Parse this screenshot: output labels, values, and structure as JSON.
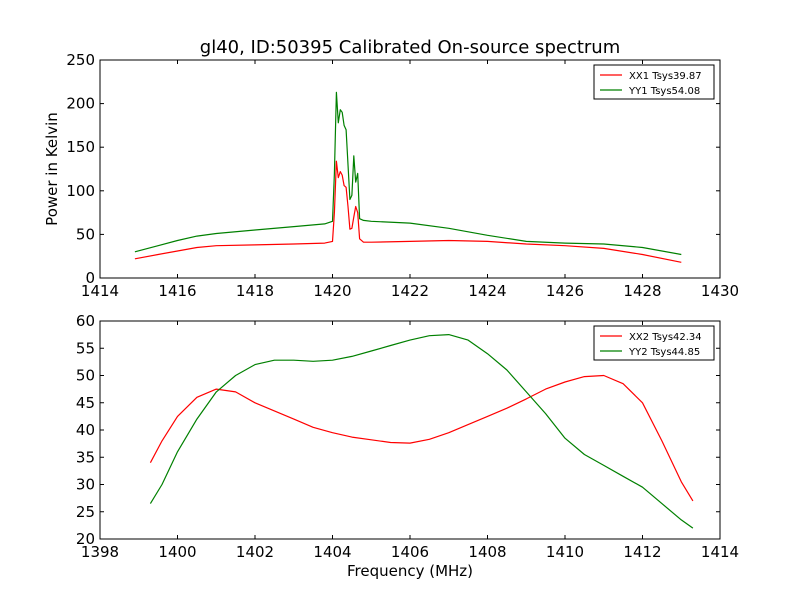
{
  "figure": {
    "title": "gl40, ID:50395 Calibrated On-source spectrum"
  },
  "colors": {
    "XX": "#ff0000",
    "YY": "#008000",
    "axis": "#000000"
  },
  "chart_data": [
    {
      "type": "line",
      "title": "gl40, ID:50395 Calibrated On-source spectrum",
      "xlabel": "",
      "ylabel": "Power in Kelvin",
      "xlim": [
        1414,
        1430
      ],
      "ylim": [
        0,
        250
      ],
      "xticks": [
        "1414",
        "1416",
        "1418",
        "1420",
        "1422",
        "1424",
        "1426",
        "1428",
        "1430"
      ],
      "yticks": [
        "0",
        "50",
        "100",
        "150",
        "200",
        "250"
      ],
      "legend_position": "top-right",
      "grid": false,
      "series": [
        {
          "name": "XX1 Tsys39.87",
          "color": "#ff0000",
          "points": [
            [
              1414.9,
              22
            ],
            [
              1415.5,
              27
            ],
            [
              1416,
              31
            ],
            [
              1416.5,
              35
            ],
            [
              1417,
              37
            ],
            [
              1418,
              38
            ],
            [
              1419,
              39
            ],
            [
              1419.8,
              40
            ],
            [
              1420.0,
              42
            ],
            [
              1420.05,
              75
            ],
            [
              1420.1,
              134
            ],
            [
              1420.15,
              115
            ],
            [
              1420.2,
              122
            ],
            [
              1420.25,
              118
            ],
            [
              1420.3,
              106
            ],
            [
              1420.35,
              104
            ],
            [
              1420.4,
              82
            ],
            [
              1420.45,
              56
            ],
            [
              1420.5,
              57
            ],
            [
              1420.55,
              70
            ],
            [
              1420.6,
              82
            ],
            [
              1420.65,
              75
            ],
            [
              1420.7,
              45
            ],
            [
              1420.8,
              41
            ],
            [
              1421,
              41
            ],
            [
              1422,
              42
            ],
            [
              1423,
              43
            ],
            [
              1424,
              42
            ],
            [
              1425,
              39
            ],
            [
              1426,
              37
            ],
            [
              1427,
              34
            ],
            [
              1428,
              27
            ],
            [
              1429,
              18
            ]
          ]
        },
        {
          "name": "YY1 Tsys54.08",
          "color": "#008000",
          "points": [
            [
              1414.9,
              30
            ],
            [
              1415.5,
              37
            ],
            [
              1416,
              43
            ],
            [
              1416.5,
              48
            ],
            [
              1417,
              51
            ],
            [
              1418,
              55
            ],
            [
              1419,
              59
            ],
            [
              1419.8,
              62
            ],
            [
              1420.0,
              65
            ],
            [
              1420.05,
              120
            ],
            [
              1420.1,
              213
            ],
            [
              1420.15,
              178
            ],
            [
              1420.2,
              193
            ],
            [
              1420.25,
              190
            ],
            [
              1420.3,
              175
            ],
            [
              1420.35,
              170
            ],
            [
              1420.4,
              130
            ],
            [
              1420.45,
              90
            ],
            [
              1420.5,
              95
            ],
            [
              1420.55,
              140
            ],
            [
              1420.6,
              110
            ],
            [
              1420.65,
              120
            ],
            [
              1420.7,
              68
            ],
            [
              1420.8,
              66
            ],
            [
              1421,
              65
            ],
            [
              1422,
              63
            ],
            [
              1423,
              57
            ],
            [
              1424,
              49
            ],
            [
              1425,
              42
            ],
            [
              1426,
              40
            ],
            [
              1427,
              39
            ],
            [
              1428,
              35
            ],
            [
              1429,
              27
            ]
          ]
        }
      ]
    },
    {
      "type": "line",
      "title": "",
      "xlabel": "Frequency (MHz)",
      "ylabel": "",
      "xlim": [
        1398,
        1414
      ],
      "ylim": [
        20,
        60
      ],
      "xticks": [
        "1398",
        "1400",
        "1402",
        "1404",
        "1406",
        "1408",
        "1410",
        "1412",
        "1414"
      ],
      "yticks": [
        "20",
        "25",
        "30",
        "35",
        "40",
        "45",
        "50",
        "55",
        "60"
      ],
      "legend_position": "top-right",
      "grid": false,
      "series": [
        {
          "name": "XX2 Tsys42.34",
          "color": "#ff0000",
          "points": [
            [
              1399.3,
              34
            ],
            [
              1399.6,
              38
            ],
            [
              1400,
              42.5
            ],
            [
              1400.5,
              46
            ],
            [
              1401,
              47.5
            ],
            [
              1401.5,
              47
            ],
            [
              1402,
              45
            ],
            [
              1402.5,
              43.5
            ],
            [
              1403,
              42
            ],
            [
              1403.5,
              40.5
            ],
            [
              1404,
              39.5
            ],
            [
              1404.5,
              38.7
            ],
            [
              1405,
              38.2
            ],
            [
              1405.5,
              37.7
            ],
            [
              1406,
              37.6
            ],
            [
              1406.5,
              38.3
            ],
            [
              1407,
              39.5
            ],
            [
              1407.5,
              41
            ],
            [
              1408,
              42.5
            ],
            [
              1408.5,
              44
            ],
            [
              1409,
              45.7
            ],
            [
              1409.5,
              47.5
            ],
            [
              1410,
              48.8
            ],
            [
              1410.5,
              49.8
            ],
            [
              1411,
              50
            ],
            [
              1411.5,
              48.5
            ],
            [
              1412,
              45
            ],
            [
              1412.5,
              38
            ],
            [
              1413,
              30.5
            ],
            [
              1413.3,
              27
            ]
          ]
        },
        {
          "name": "YY2 Tsys44.85",
          "color": "#008000",
          "points": [
            [
              1399.3,
              26.5
            ],
            [
              1399.6,
              30
            ],
            [
              1400,
              36
            ],
            [
              1400.5,
              42
            ],
            [
              1401,
              47
            ],
            [
              1401.5,
              50
            ],
            [
              1402,
              52
            ],
            [
              1402.5,
              52.8
            ],
            [
              1403,
              52.8
            ],
            [
              1403.5,
              52.6
            ],
            [
              1404,
              52.8
            ],
            [
              1404.5,
              53.5
            ],
            [
              1405,
              54.5
            ],
            [
              1405.5,
              55.5
            ],
            [
              1406,
              56.5
            ],
            [
              1406.5,
              57.3
            ],
            [
              1407,
              57.5
            ],
            [
              1407.5,
              56.5
            ],
            [
              1408,
              54
            ],
            [
              1408.5,
              51
            ],
            [
              1409,
              47
            ],
            [
              1409.5,
              43
            ],
            [
              1410,
              38.5
            ],
            [
              1410.5,
              35.5
            ],
            [
              1411,
              33.5
            ],
            [
              1411.5,
              31.5
            ],
            [
              1412,
              29.5
            ],
            [
              1412.5,
              26.5
            ],
            [
              1413,
              23.5
            ],
            [
              1413.3,
              22
            ]
          ]
        }
      ]
    }
  ]
}
